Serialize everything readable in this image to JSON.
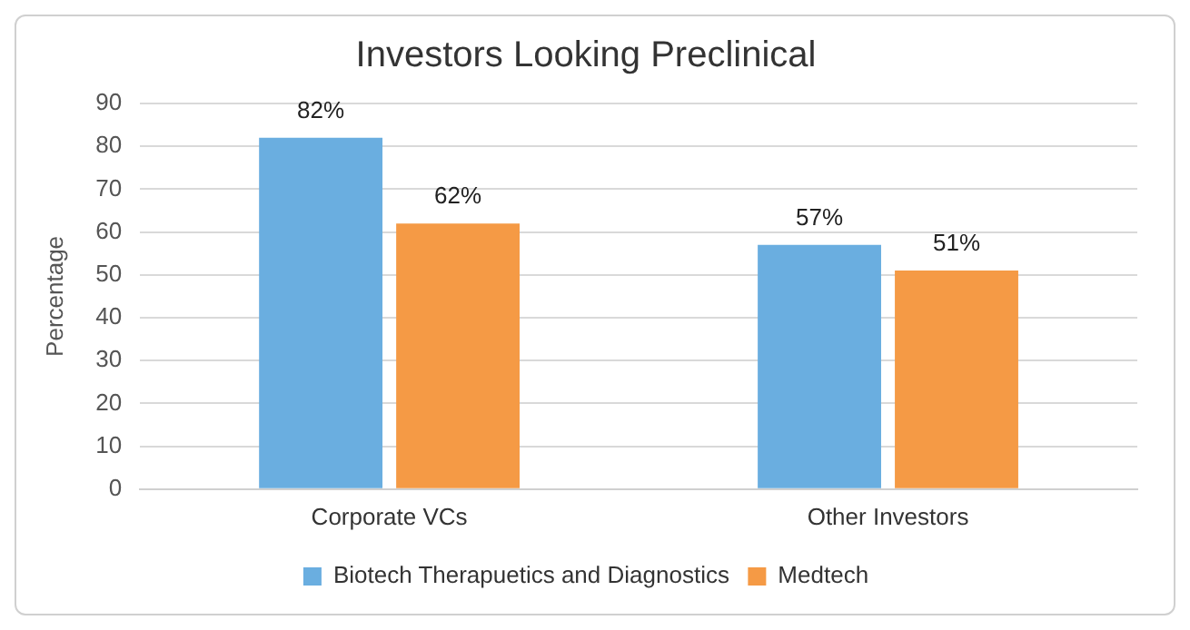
{
  "chart_data": {
    "type": "bar",
    "title": "Investors Looking Preclinical",
    "ylabel": "Percentage",
    "categories": [
      "Corporate VCs",
      "Other Investors"
    ],
    "series": [
      {
        "name": "Biotech Therapuetics and Diagnostics",
        "color": "#6aaee0",
        "values": [
          82,
          57
        ],
        "value_labels": [
          "82%",
          "57%"
        ]
      },
      {
        "name": "Medtech",
        "color": "#f59a45",
        "values": [
          62,
          51
        ],
        "value_labels": [
          "62%",
          "51%"
        ]
      }
    ],
    "ylim": [
      0,
      90
    ],
    "yticks": [
      0,
      10,
      20,
      30,
      40,
      50,
      60,
      70,
      80,
      90
    ],
    "grid": "y",
    "legend": "bottom"
  }
}
